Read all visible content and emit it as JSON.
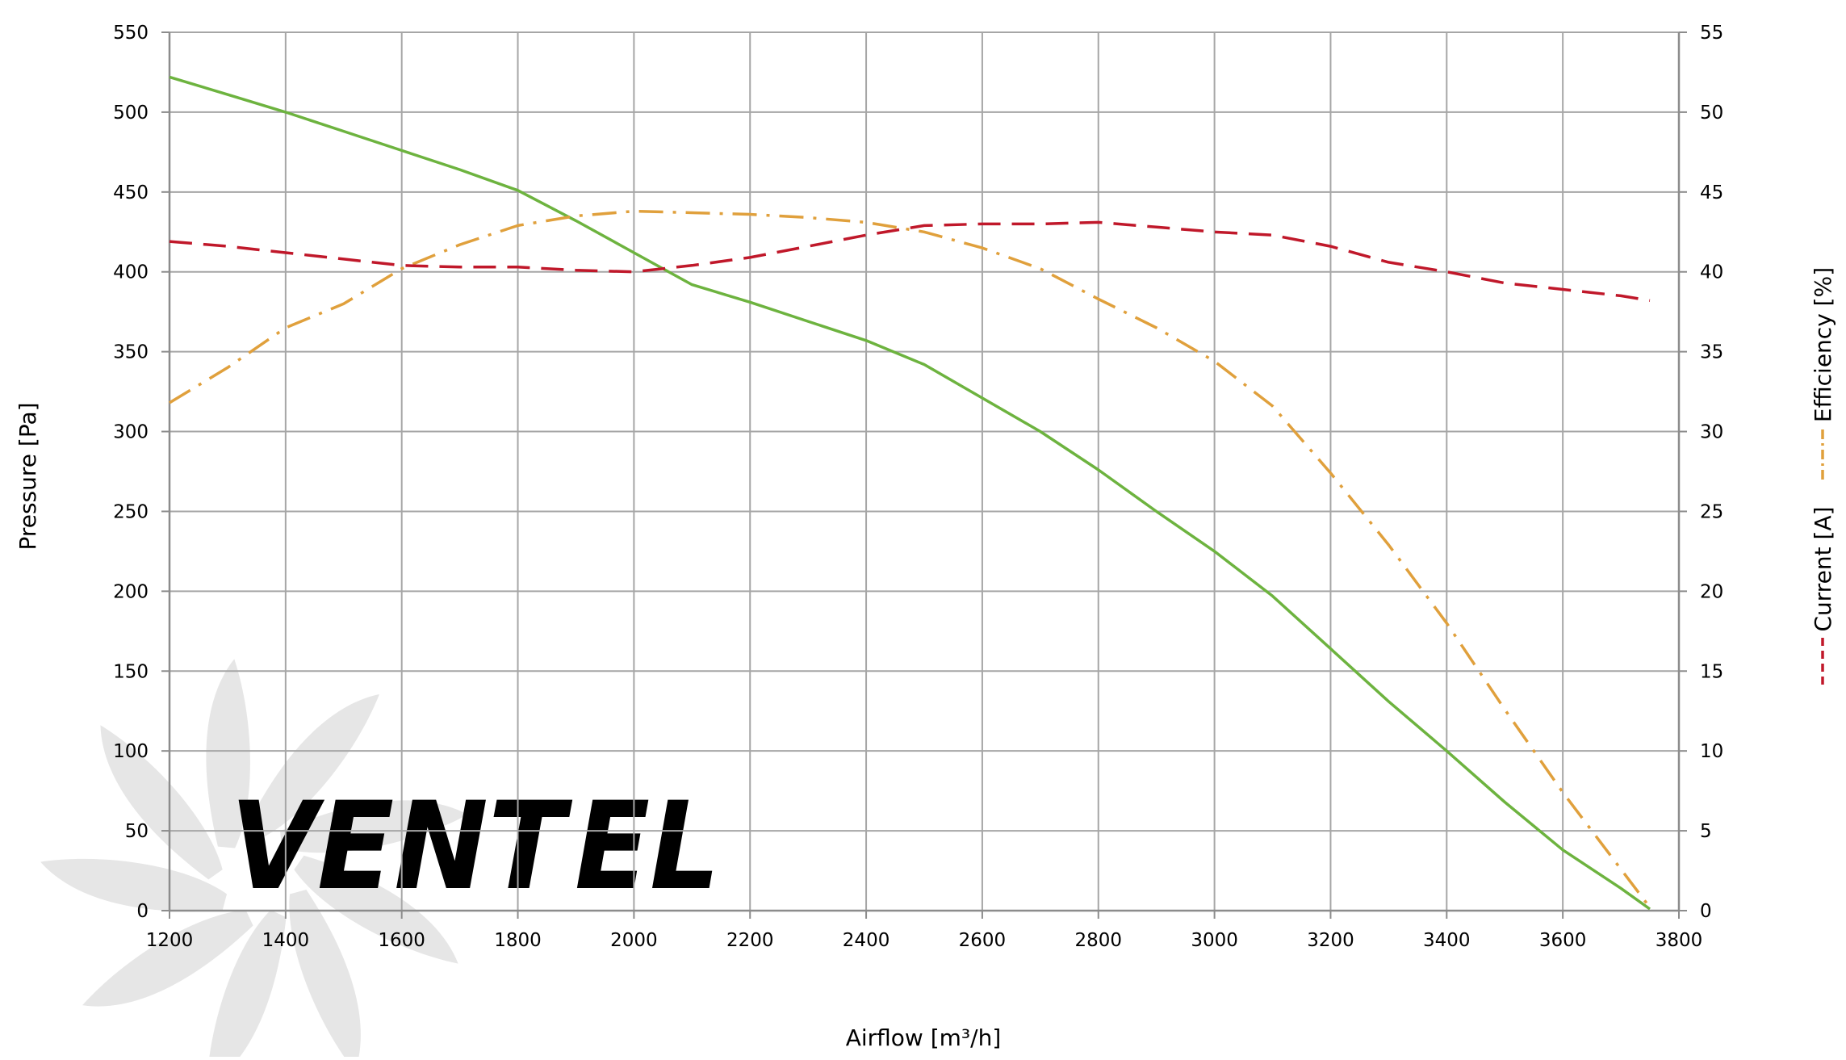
{
  "colors": {
    "grid": "#a6a6a6",
    "axis": "#8c8c8c",
    "pressure": "#6db33f",
    "efficiency": "#e0a03c",
    "current": "#c0182a",
    "watermark_gray": "#d3d3d3",
    "watermark_blue": "#bcdcf0"
  },
  "watermark": {
    "text_main": "VENT",
    "text_accent": "EL",
    "icon": "fan-blades-icon"
  },
  "chart_data": {
    "type": "line",
    "xlabel": "Airflow [m³/h]",
    "ylabel_left": "Pressure [Pa]",
    "ylabel_right_current": "Current [A]",
    "ylabel_right_efficiency": "Efficiency [%]",
    "xlim": [
      1200,
      3800
    ],
    "ylim_left": [
      0,
      550
    ],
    "ylim_right": [
      0,
      55
    ],
    "x_ticks": [
      "1200",
      "1400",
      "1600",
      "1800",
      "2000",
      "2200",
      "2400",
      "2600",
      "2800",
      "3000",
      "3200",
      "3400",
      "3600",
      "3800"
    ],
    "y_left_ticks": [
      "0",
      "50",
      "100",
      "150",
      "200",
      "250",
      "300",
      "350",
      "400",
      "450",
      "500",
      "550"
    ],
    "y_right_ticks": [
      "0",
      "5",
      "10",
      "15",
      "20",
      "25",
      "30",
      "35",
      "40",
      "45",
      "50",
      "55"
    ],
    "grid": true,
    "series": [
      {
        "name": "Pressure [Pa]",
        "axis": "left",
        "style": "solid",
        "color_key": "pressure",
        "points": [
          [
            1200,
            522
          ],
          [
            1300,
            511
          ],
          [
            1400,
            500
          ],
          [
            1500,
            488
          ],
          [
            1600,
            476
          ],
          [
            1700,
            464
          ],
          [
            1800,
            451
          ],
          [
            1900,
            432
          ],
          [
            2000,
            412
          ],
          [
            2100,
            392
          ],
          [
            2200,
            381
          ],
          [
            2300,
            369
          ],
          [
            2400,
            357
          ],
          [
            2500,
            342
          ],
          [
            2600,
            321
          ],
          [
            2700,
            300
          ],
          [
            2800,
            276
          ],
          [
            2900,
            250
          ],
          [
            3000,
            225
          ],
          [
            3100,
            197
          ],
          [
            3200,
            164
          ],
          [
            3300,
            131
          ],
          [
            3400,
            100
          ],
          [
            3500,
            68
          ],
          [
            3600,
            38
          ],
          [
            3700,
            14
          ],
          [
            3750,
            1
          ]
        ]
      },
      {
        "name": "Efficiency [%]",
        "axis": "right",
        "style": "dash-dot",
        "color_key": "efficiency",
        "points": [
          [
            1200,
            31.8
          ],
          [
            1300,
            34
          ],
          [
            1400,
            36.5
          ],
          [
            1500,
            38
          ],
          [
            1600,
            40.2
          ],
          [
            1700,
            41.7
          ],
          [
            1800,
            42.9
          ],
          [
            1900,
            43.5
          ],
          [
            2000,
            43.8
          ],
          [
            2100,
            43.7
          ],
          [
            2200,
            43.6
          ],
          [
            2300,
            43.4
          ],
          [
            2400,
            43.1
          ],
          [
            2500,
            42.5
          ],
          [
            2600,
            41.5
          ],
          [
            2700,
            40.2
          ],
          [
            2800,
            38.3
          ],
          [
            2900,
            36.5
          ],
          [
            3000,
            34.4
          ],
          [
            3100,
            31.6
          ],
          [
            3200,
            27.4
          ],
          [
            3300,
            22.9
          ],
          [
            3400,
            18
          ],
          [
            3500,
            12.6
          ],
          [
            3600,
            7.4
          ],
          [
            3700,
            2.6
          ],
          [
            3750,
            0.2
          ]
        ]
      },
      {
        "name": "Current [A]",
        "axis": "right",
        "style": "dashed",
        "color_key": "current",
        "points": [
          [
            1200,
            41.9
          ],
          [
            1300,
            41.6
          ],
          [
            1400,
            41.2
          ],
          [
            1500,
            40.8
          ],
          [
            1600,
            40.4
          ],
          [
            1700,
            40.3
          ],
          [
            1800,
            40.3
          ],
          [
            1900,
            40.1
          ],
          [
            2000,
            40
          ],
          [
            2100,
            40.4
          ],
          [
            2200,
            40.9
          ],
          [
            2300,
            41.6
          ],
          [
            2400,
            42.3
          ],
          [
            2500,
            42.9
          ],
          [
            2600,
            43
          ],
          [
            2700,
            43
          ],
          [
            2800,
            43.1
          ],
          [
            2900,
            42.8
          ],
          [
            3000,
            42.5
          ],
          [
            3100,
            42.3
          ],
          [
            3200,
            41.6
          ],
          [
            3300,
            40.6
          ],
          [
            3400,
            40
          ],
          [
            3500,
            39.3
          ],
          [
            3600,
            38.9
          ],
          [
            3700,
            38.5
          ],
          [
            3750,
            38.2
          ]
        ]
      }
    ]
  }
}
